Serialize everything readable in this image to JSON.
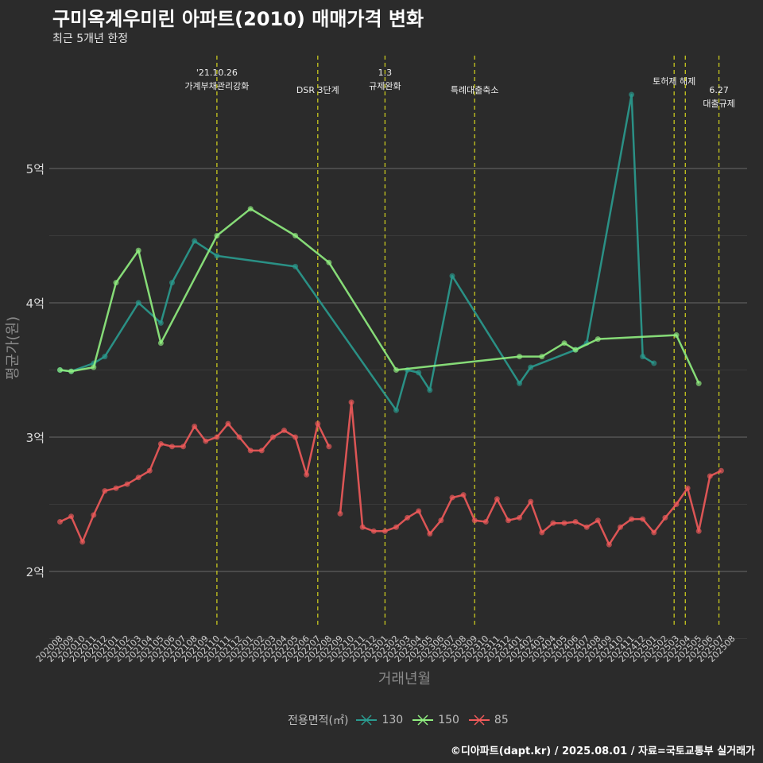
{
  "title": "구미옥계우미린 아파트(2010) 매매가격 변화",
  "subtitle": "최근 5개년 한정",
  "caption": "©디아파트(dapt.kr) / 2025.08.01 / 자료=국토교통부 실거래가",
  "legend": {
    "title": "전용면적(㎡)",
    "items": [
      {
        "label": "130",
        "color": "#2a9b8f"
      },
      {
        "label": "150",
        "color": "#90ee80"
      },
      {
        "label": "85",
        "color": "#f05a5a"
      }
    ]
  },
  "chart_data": {
    "type": "line",
    "xlabel": "거래년월",
    "ylabel": "평균가(원)",
    "categories": [
      "202008",
      "202009",
      "202010",
      "202011",
      "202012",
      "202101",
      "202102",
      "202103",
      "202104",
      "202105",
      "202106",
      "202107",
      "202108",
      "202109",
      "202110",
      "202111",
      "202112",
      "202201",
      "202202",
      "202203",
      "202204",
      "202205",
      "202206",
      "202207",
      "202208",
      "202209",
      "202210",
      "202211",
      "202212",
      "202301",
      "202302",
      "202303",
      "202304",
      "202305",
      "202306",
      "202307",
      "202308",
      "202309",
      "202310",
      "202311",
      "202312",
      "202401",
      "202402",
      "202403",
      "202404",
      "202405",
      "202406",
      "202407",
      "202408",
      "202409",
      "202410",
      "202411",
      "202412",
      "202501",
      "202502",
      "202503",
      "202504",
      "202505",
      "202506",
      "202507",
      "202508"
    ],
    "y_ticks": [
      2,
      3,
      4,
      5
    ],
    "y_tick_labels": [
      "2억",
      "3억",
      "4억",
      "5억"
    ],
    "ylim": [
      1.6,
      5.8
    ],
    "grid": true,
    "legend_position": "bottom",
    "series": [
      {
        "name": "130",
        "color": "#2a9b8f",
        "values": [
          [
            0,
            3.5
          ],
          [
            1,
            3.49
          ],
          [
            3,
            3.55
          ],
          [
            4,
            3.6
          ],
          [
            7,
            4.0
          ],
          [
            9,
            3.85
          ],
          [
            10,
            4.15
          ],
          [
            12,
            4.46
          ],
          [
            14,
            4.35
          ],
          [
            21,
            4.27
          ],
          [
            30,
            3.2
          ],
          [
            31,
            3.5
          ],
          [
            32,
            3.48
          ],
          [
            33,
            3.35
          ],
          [
            35,
            4.2
          ],
          [
            41,
            3.4
          ],
          [
            42,
            3.52
          ],
          [
            46,
            3.65
          ],
          [
            47,
            3.7
          ],
          [
            51,
            5.55
          ],
          [
            52,
            3.6
          ],
          [
            53,
            3.55
          ]
        ]
      },
      {
        "name": "150",
        "color": "#90ee80",
        "values": [
          [
            0,
            3.5
          ],
          [
            1,
            3.49
          ],
          [
            3,
            3.52
          ],
          [
            5,
            4.15
          ],
          [
            7,
            4.39
          ],
          [
            9,
            3.7
          ],
          [
            14,
            4.5
          ],
          [
            17,
            4.7
          ],
          [
            21,
            4.5
          ],
          [
            24,
            4.3
          ],
          [
            30,
            3.5
          ],
          [
            41,
            3.6
          ],
          [
            43,
            3.6
          ],
          [
            45,
            3.7
          ],
          [
            46,
            3.65
          ],
          [
            48,
            3.73
          ],
          [
            55,
            3.76
          ],
          [
            57,
            3.4
          ]
        ]
      },
      {
        "name": "85",
        "color": "#f05a5a",
        "values": [
          [
            0,
            2.37
          ],
          [
            1,
            2.41
          ],
          [
            2,
            2.22
          ],
          [
            3,
            2.42
          ],
          [
            4,
            2.6
          ],
          [
            5,
            2.62
          ],
          [
            6,
            2.65
          ],
          [
            7,
            2.7
          ],
          [
            8,
            2.75
          ],
          [
            9,
            2.95
          ],
          [
            10,
            2.93
          ],
          [
            11,
            2.93
          ],
          [
            12,
            3.08
          ],
          [
            13,
            2.97
          ],
          [
            14,
            3.0
          ],
          [
            15,
            3.1
          ],
          [
            16,
            3.0
          ],
          [
            17,
            2.9
          ],
          [
            18,
            2.9
          ],
          [
            19,
            3.0
          ],
          [
            20,
            3.05
          ],
          [
            21,
            3.0
          ],
          [
            22,
            2.72
          ],
          [
            23,
            3.1
          ],
          [
            24,
            2.93
          ],
          [
            null,
            null
          ],
          [
            25,
            2.43
          ],
          [
            26,
            3.26
          ],
          [
            27,
            2.33
          ],
          [
            28,
            2.3
          ],
          [
            29,
            2.3
          ],
          [
            30,
            2.33
          ],
          [
            31,
            2.4
          ],
          [
            32,
            2.45
          ],
          [
            33,
            2.28
          ],
          [
            34,
            2.38
          ],
          [
            35,
            2.55
          ],
          [
            36,
            2.57
          ],
          [
            37,
            2.38
          ],
          [
            38,
            2.37
          ],
          [
            39,
            2.54
          ],
          [
            40,
            2.38
          ],
          [
            41,
            2.4
          ],
          [
            42,
            2.52
          ],
          [
            43,
            2.29
          ],
          [
            44,
            2.36
          ],
          [
            45,
            2.36
          ],
          [
            46,
            2.37
          ],
          [
            47,
            2.33
          ],
          [
            48,
            2.38
          ],
          [
            49,
            2.2
          ],
          [
            50,
            2.33
          ],
          [
            51,
            2.39
          ],
          [
            52,
            2.39
          ],
          [
            53,
            2.29
          ],
          [
            54,
            2.4
          ],
          [
            55,
            2.5
          ],
          [
            56,
            2.62
          ],
          [
            57,
            2.3
          ],
          [
            58,
            2.71
          ],
          [
            59,
            2.75
          ]
        ]
      }
    ],
    "annotations": [
      {
        "label_lines": [
          "'21.10.26",
          "가계부채관리강화"
        ],
        "x_month": 14,
        "level": 0
      },
      {
        "label_lines": [
          "DSR 3단계"
        ],
        "x_month": 23,
        "level": 1
      },
      {
        "label_lines": [
          "1.3",
          "규제완화"
        ],
        "x_month": 29,
        "level": 0
      },
      {
        "label_lines": [
          "특례대출축소"
        ],
        "x_month": 37,
        "level": 1
      },
      {
        "label_lines": [
          "토허제 해제"
        ],
        "x_month": 54.8,
        "level": 0.5
      },
      {
        "label_lines": [],
        "x_month": 55.8,
        "level": 0
      },
      {
        "label_lines": [
          "6.27",
          "대출규제"
        ],
        "x_month": 58.8,
        "level": 1
      }
    ]
  }
}
